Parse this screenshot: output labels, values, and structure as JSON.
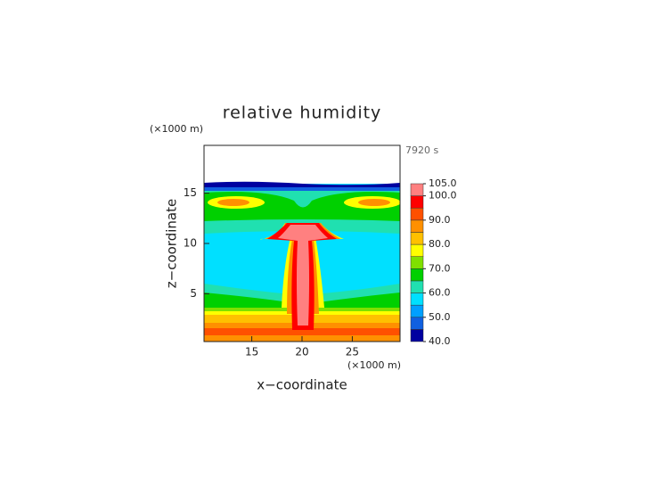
{
  "chart_data": {
    "type": "contour",
    "title": "relative humidity",
    "xlabel": "x−coordinate",
    "ylabel": "z−coordinate",
    "x_unit_label": "(×1000 m)",
    "y_unit_label": "(×1000 m)",
    "annotation": "7920 s",
    "xlim": [
      10.25,
      29.75
    ],
    "ylim": [
      0.25,
      19.75
    ],
    "xticks": [
      15,
      20,
      25
    ],
    "yticks": [
      5,
      10,
      15
    ],
    "colorbar": {
      "levels": [
        40,
        45,
        50,
        55,
        60,
        65,
        70,
        75,
        80,
        85,
        90,
        95,
        100,
        105
      ],
      "colors": [
        "#0000a0",
        "#1060e0",
        "#00a0ff",
        "#00e0ff",
        "#20e0b0",
        "#00d000",
        "#80e000",
        "#ffff00",
        "#ffc000",
        "#ff9000",
        "#ff5000",
        "#ff0000",
        "#ff8080"
      ],
      "ticks": [
        {
          "value": 40,
          "label": "40.0"
        },
        {
          "value": 50,
          "label": "50.0"
        },
        {
          "value": 60,
          "label": "60.0"
        },
        {
          "value": 70,
          "label": "70.0"
        },
        {
          "value": 80,
          "label": "80.0"
        },
        {
          "value": 90,
          "label": "90.0"
        },
        {
          "value": 100,
          "label": "100.0"
        },
        {
          "value": 105,
          "label": "105.0"
        }
      ]
    }
  }
}
